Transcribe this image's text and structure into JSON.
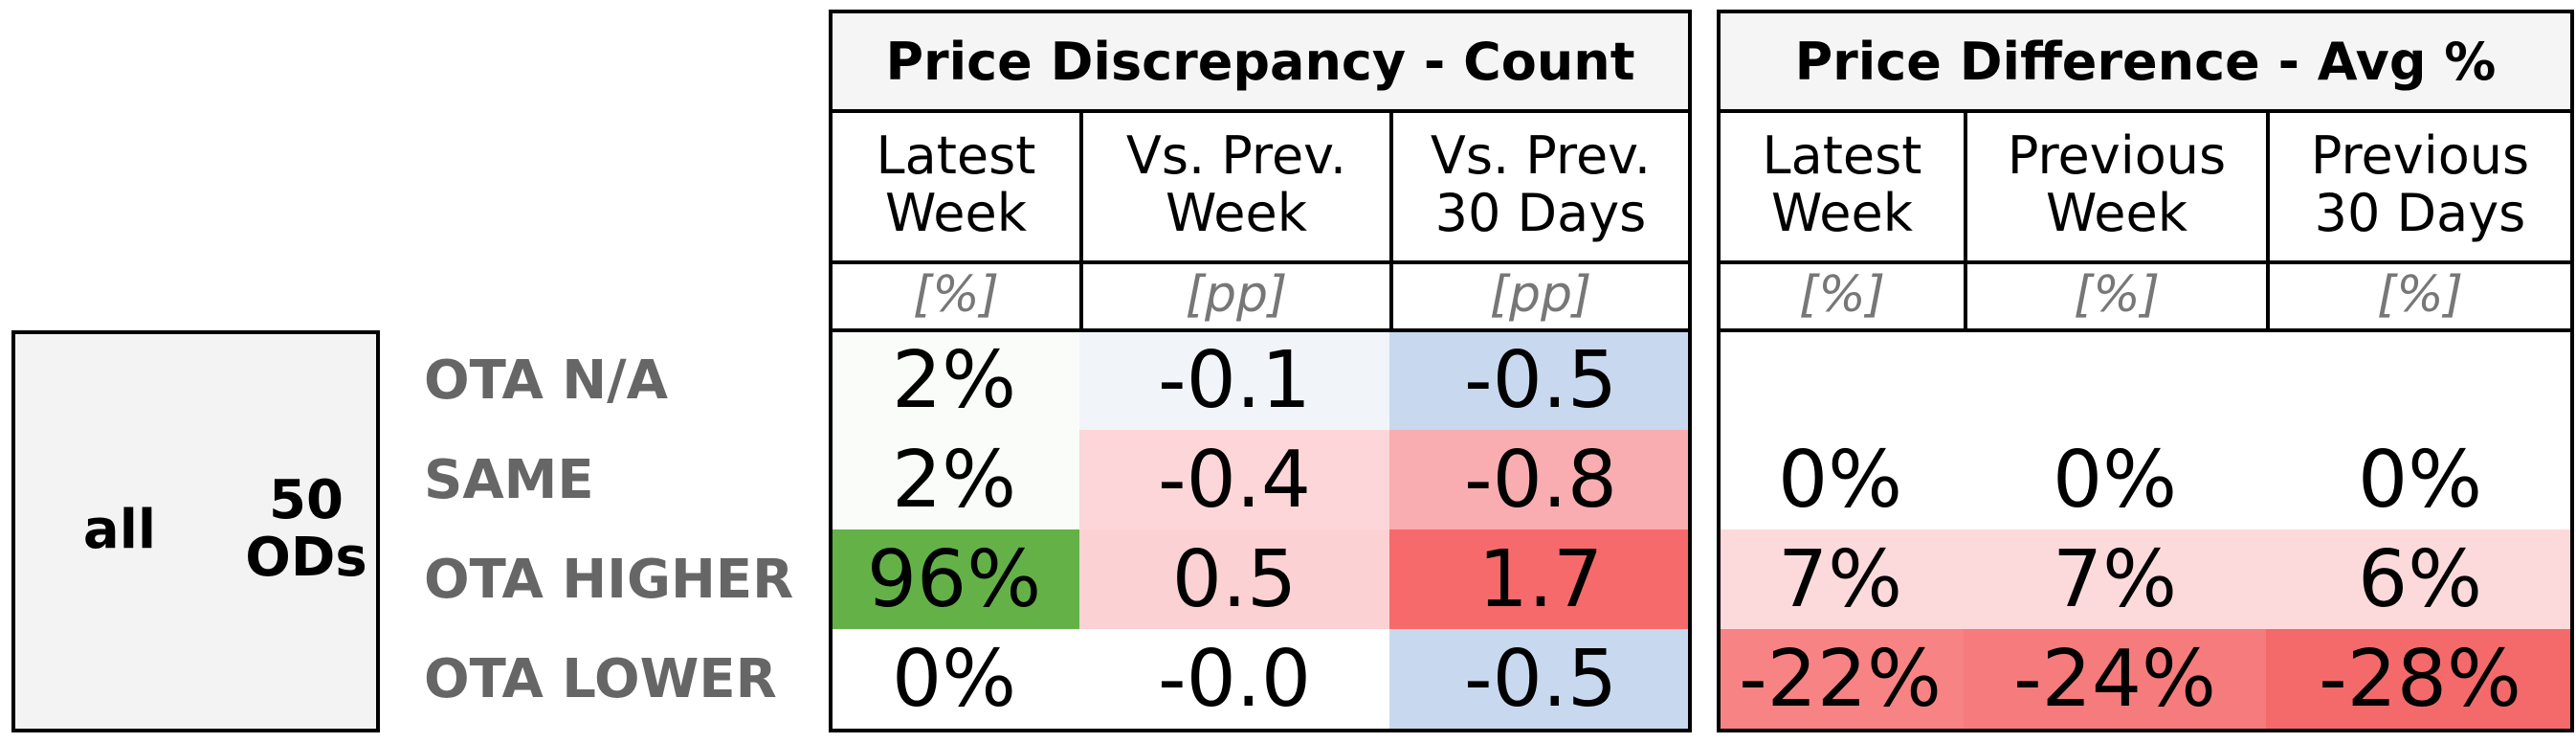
{
  "chart_data": {
    "type": "table",
    "segment": "all",
    "od_count": "50\nODs",
    "row_labels": [
      "OTA N/A",
      "SAME",
      "OTA HIGHER",
      "OTA LOWER"
    ],
    "groups": [
      {
        "title": "Price Discrepancy - Count",
        "columns": [
          {
            "header": "Latest\nWeek",
            "unit": "[%]"
          },
          {
            "header": "Vs. Prev.\nWeek",
            "unit": "[pp]"
          },
          {
            "header": "Vs. Prev.\n30 Days",
            "unit": "[pp]"
          }
        ],
        "rows": [
          {
            "values": [
              2,
              -0.1,
              -0.5
            ],
            "labels": [
              "2%",
              "-0.1",
              "-0.5"
            ],
            "colors": [
              "#fafcfa",
              "#f1f5fa",
              "#c8d8ee"
            ]
          },
          {
            "values": [
              2,
              -0.4,
              -0.8
            ],
            "labels": [
              "2%",
              "-0.4",
              "-0.8"
            ],
            "colors": [
              "#fafcfa",
              "#fcd6d8",
              "#f9adb0"
            ]
          },
          {
            "values": [
              96,
              0.5,
              1.7
            ],
            "labels": [
              "96%",
              "0.5",
              "1.7"
            ],
            "colors": [
              "#64b247",
              "#fcd1d4",
              "#f66a6c"
            ]
          },
          {
            "values": [
              0,
              -0.0,
              -0.5
            ],
            "labels": [
              "0%",
              "-0.0",
              "-0.5"
            ],
            "colors": [
              "#ffffff",
              "#ffffff",
              "#c8d8ee"
            ]
          }
        ]
      },
      {
        "title": "Price Difference - Avg %",
        "columns": [
          {
            "header": "Latest\nWeek",
            "unit": "[%]"
          },
          {
            "header": "Previous\nWeek",
            "unit": "[%]"
          },
          {
            "header": "Previous\n30 Days",
            "unit": "[%]"
          }
        ],
        "rows": [
          {
            "values": [
              null,
              null,
              null
            ],
            "labels": [
              "",
              "",
              ""
            ],
            "colors": [
              "#ffffff",
              "#ffffff",
              "#ffffff"
            ]
          },
          {
            "values": [
              0,
              0,
              0
            ],
            "labels": [
              "0%",
              "0%",
              "0%"
            ],
            "colors": [
              "#ffffff",
              "#ffffff",
              "#ffffff"
            ]
          },
          {
            "values": [
              7,
              7,
              6
            ],
            "labels": [
              "7%",
              "7%",
              "6%"
            ],
            "colors": [
              "#fcdadc",
              "#fcdadc",
              "#fcdadc"
            ]
          },
          {
            "values": [
              -22,
              -24,
              -28
            ],
            "labels": [
              "-22%",
              "-24%",
              "-28%"
            ],
            "colors": [
              "#f88384",
              "#f67b7c",
              "#f46a6b"
            ]
          }
        ]
      }
    ]
  }
}
